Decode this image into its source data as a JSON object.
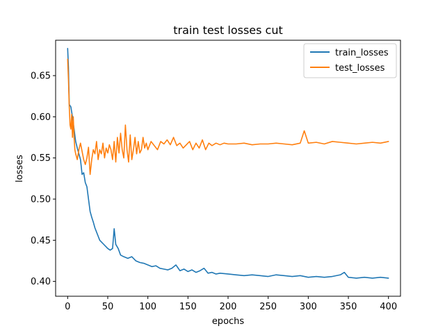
{
  "chart_data": {
    "type": "line",
    "title": "train test losses cut",
    "xlabel": "epochs",
    "ylabel": "losses",
    "xlim": [
      -15,
      415
    ],
    "ylim": [
      0.382,
      0.693
    ],
    "xticks": [
      0,
      50,
      100,
      150,
      200,
      250,
      300,
      350,
      400
    ],
    "yticks": [
      0.4,
      0.45,
      0.5,
      0.55,
      0.6,
      0.65
    ],
    "xtick_labels": [
      "0",
      "50",
      "100",
      "150",
      "200",
      "250",
      "300",
      "350",
      "400"
    ],
    "ytick_labels": [
      "0.40",
      "0.45",
      "0.50",
      "0.55",
      "0.60",
      "0.65"
    ],
    "grid": false,
    "legend_position": "top-right",
    "series": [
      {
        "name": "train_losses",
        "color": "#1f77b4",
        "points": [
          [
            0,
            0.683
          ],
          [
            1,
            0.66
          ],
          [
            2,
            0.615
          ],
          [
            4,
            0.612
          ],
          [
            6,
            0.6
          ],
          [
            8,
            0.585
          ],
          [
            10,
            0.57
          ],
          [
            12,
            0.562
          ],
          [
            14,
            0.555
          ],
          [
            16,
            0.548
          ],
          [
            18,
            0.53
          ],
          [
            20,
            0.532
          ],
          [
            22,
            0.52
          ],
          [
            24,
            0.515
          ],
          [
            26,
            0.5
          ],
          [
            28,
            0.485
          ],
          [
            30,
            0.478
          ],
          [
            32,
            0.472
          ],
          [
            34,
            0.465
          ],
          [
            36,
            0.46
          ],
          [
            38,
            0.455
          ],
          [
            40,
            0.45
          ],
          [
            42,
            0.448
          ],
          [
            45,
            0.445
          ],
          [
            48,
            0.442
          ],
          [
            50,
            0.44
          ],
          [
            53,
            0.438
          ],
          [
            56,
            0.44
          ],
          [
            58,
            0.464
          ],
          [
            60,
            0.445
          ],
          [
            63,
            0.44
          ],
          [
            66,
            0.432
          ],
          [
            70,
            0.43
          ],
          [
            75,
            0.428
          ],
          [
            80,
            0.43
          ],
          [
            85,
            0.425
          ],
          [
            90,
            0.423
          ],
          [
            95,
            0.422
          ],
          [
            100,
            0.42
          ],
          [
            105,
            0.418
          ],
          [
            110,
            0.419
          ],
          [
            115,
            0.416
          ],
          [
            120,
            0.415
          ],
          [
            125,
            0.414
          ],
          [
            130,
            0.416
          ],
          [
            135,
            0.42
          ],
          [
            140,
            0.413
          ],
          [
            145,
            0.415
          ],
          [
            150,
            0.412
          ],
          [
            155,
            0.414
          ],
          [
            160,
            0.411
          ],
          [
            165,
            0.413
          ],
          [
            170,
            0.416
          ],
          [
            175,
            0.41
          ],
          [
            180,
            0.411
          ],
          [
            185,
            0.409
          ],
          [
            190,
            0.41
          ],
          [
            200,
            0.409
          ],
          [
            210,
            0.408
          ],
          [
            220,
            0.407
          ],
          [
            230,
            0.408
          ],
          [
            240,
            0.407
          ],
          [
            250,
            0.406
          ],
          [
            260,
            0.408
          ],
          [
            270,
            0.407
          ],
          [
            280,
            0.406
          ],
          [
            290,
            0.407
          ],
          [
            300,
            0.405
          ],
          [
            310,
            0.406
          ],
          [
            320,
            0.405
          ],
          [
            330,
            0.406
          ],
          [
            340,
            0.408
          ],
          [
            345,
            0.411
          ],
          [
            350,
            0.405
          ],
          [
            360,
            0.404
          ],
          [
            370,
            0.405
          ],
          [
            380,
            0.404
          ],
          [
            390,
            0.405
          ],
          [
            400,
            0.404
          ]
        ]
      },
      {
        "name": "test_losses",
        "color": "#ff7f0e",
        "points": [
          [
            0,
            0.67
          ],
          [
            1,
            0.645
          ],
          [
            2,
            0.612
          ],
          [
            3,
            0.59
          ],
          [
            4,
            0.585
          ],
          [
            5,
            0.603
          ],
          [
            6,
            0.575
          ],
          [
            7,
            0.6
          ],
          [
            8,
            0.575
          ],
          [
            9,
            0.56
          ],
          [
            10,
            0.555
          ],
          [
            12,
            0.548
          ],
          [
            14,
            0.56
          ],
          [
            16,
            0.568
          ],
          [
            18,
            0.558
          ],
          [
            20,
            0.548
          ],
          [
            22,
            0.542
          ],
          [
            24,
            0.55
          ],
          [
            26,
            0.563
          ],
          [
            28,
            0.53
          ],
          [
            30,
            0.548
          ],
          [
            32,
            0.56
          ],
          [
            34,
            0.555
          ],
          [
            36,
            0.57
          ],
          [
            38,
            0.548
          ],
          [
            40,
            0.56
          ],
          [
            42,
            0.555
          ],
          [
            44,
            0.568
          ],
          [
            46,
            0.55
          ],
          [
            48,
            0.562
          ],
          [
            50,
            0.556
          ],
          [
            52,
            0.566
          ],
          [
            54,
            0.56
          ],
          [
            56,
            0.548
          ],
          [
            58,
            0.57
          ],
          [
            60,
            0.545
          ],
          [
            62,
            0.575
          ],
          [
            64,
            0.556
          ],
          [
            66,
            0.58
          ],
          [
            68,
            0.56
          ],
          [
            70,
            0.55
          ],
          [
            72,
            0.59
          ],
          [
            74,
            0.56
          ],
          [
            76,
            0.545
          ],
          [
            78,
            0.578
          ],
          [
            80,
            0.548
          ],
          [
            82,
            0.56
          ],
          [
            84,
            0.575
          ],
          [
            86,
            0.555
          ],
          [
            88,
            0.57
          ],
          [
            90,
            0.556
          ],
          [
            92,
            0.56
          ],
          [
            94,
            0.575
          ],
          [
            96,
            0.562
          ],
          [
            98,
            0.568
          ],
          [
            100,
            0.56
          ],
          [
            104,
            0.57
          ],
          [
            108,
            0.565
          ],
          [
            112,
            0.56
          ],
          [
            116,
            0.57
          ],
          [
            120,
            0.567
          ],
          [
            124,
            0.572
          ],
          [
            128,
            0.566
          ],
          [
            132,
            0.575
          ],
          [
            136,
            0.565
          ],
          [
            140,
            0.568
          ],
          [
            144,
            0.562
          ],
          [
            148,
            0.566
          ],
          [
            152,
            0.57
          ],
          [
            156,
            0.56
          ],
          [
            160,
            0.568
          ],
          [
            164,
            0.562
          ],
          [
            168,
            0.572
          ],
          [
            172,
            0.56
          ],
          [
            176,
            0.568
          ],
          [
            180,
            0.565
          ],
          [
            185,
            0.568
          ],
          [
            190,
            0.566
          ],
          [
            195,
            0.568
          ],
          [
            200,
            0.567
          ],
          [
            210,
            0.567
          ],
          [
            220,
            0.568
          ],
          [
            230,
            0.566
          ],
          [
            240,
            0.567
          ],
          [
            250,
            0.567
          ],
          [
            260,
            0.568
          ],
          [
            270,
            0.567
          ],
          [
            280,
            0.566
          ],
          [
            290,
            0.568
          ],
          [
            295,
            0.583
          ],
          [
            300,
            0.568
          ],
          [
            310,
            0.569
          ],
          [
            320,
            0.567
          ],
          [
            330,
            0.57
          ],
          [
            340,
            0.569
          ],
          [
            350,
            0.568
          ],
          [
            360,
            0.567
          ],
          [
            370,
            0.568
          ],
          [
            380,
            0.569
          ],
          [
            390,
            0.568
          ],
          [
            400,
            0.57
          ]
        ]
      }
    ]
  }
}
